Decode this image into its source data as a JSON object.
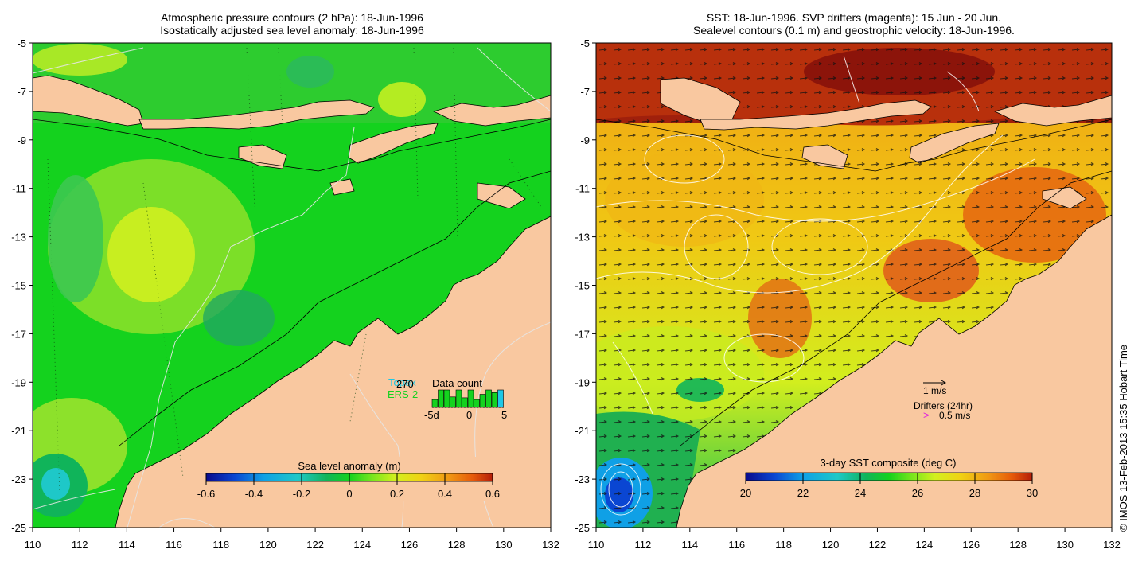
{
  "panels": {
    "left": {
      "title_line1": "Atmospheric pressure contours (2 hPa): 18-Jun-1996",
      "title_line2": "Isostatically adjusted sea level anomaly: 18-Jun-1996",
      "colorbar_title": "Sea level anomaly (m)",
      "colorbar_ticks": [
        "-0.6",
        "-0.4",
        "-0.2",
        "0",
        "0.2",
        "0.4",
        "0.6"
      ],
      "legend": {
        "satellite_1": "Topex",
        "satellite_2": "ERS-2",
        "count_value": "270",
        "count_title": "Data count",
        "count_axis": [
          "-5d",
          "0",
          "5"
        ],
        "count_bars": [
          0.45,
          1.0,
          1.0,
          0.6,
          1.0,
          0.55,
          1.0,
          0.45,
          0.75,
          1.0,
          0.85,
          1.0
        ]
      }
    },
    "right": {
      "title_line1": "SST: 18-Jun-1996. SVP drifters (magenta): 15 Jun - 20 Jun.",
      "title_line2": "Sealevel contours (0.1 m) and geostrophic velocity: 18-Jun-1996.",
      "colorbar_title": "3-day SST composite (deg C)",
      "colorbar_ticks": [
        "20",
        "22",
        "24",
        "26",
        "28",
        "30"
      ],
      "legend": {
        "velocity_label": "1 m/s",
        "drifter_title": "Drifters (24hr)",
        "drifter_symbol": ">",
        "drifter_label": "0.5 m/s"
      }
    }
  },
  "axes": {
    "lat_ticks": [
      "-5",
      "-7",
      "-9",
      "-11",
      "-13",
      "-15",
      "-17",
      "-19",
      "-21",
      "-23",
      "-25"
    ],
    "lon_ticks": [
      "110",
      "112",
      "114",
      "116",
      "118",
      "120",
      "122",
      "124",
      "126",
      "128",
      "130",
      "132"
    ]
  },
  "colors": {
    "land": "#f9c8a0",
    "sla_ramp": [
      "#0a0a8c",
      "#0a46d2",
      "#0fa0e6",
      "#1ec8c8",
      "#10b45a",
      "#14d21e",
      "#78e61e",
      "#d2f01e",
      "#f0d214",
      "#f09614",
      "#e65a0a",
      "#b41e0a"
    ],
    "sst_ramp": [
      "#0a0a8c",
      "#0a46d2",
      "#0fa0e6",
      "#1ec8c8",
      "#10b45a",
      "#14d21e",
      "#78e61e",
      "#d2f01e",
      "#f0d214",
      "#f0a014",
      "#e6640a",
      "#a0140a"
    ]
  },
  "copyright": "© IMOS 13-Feb-2013 15:35 Hobart Time"
}
